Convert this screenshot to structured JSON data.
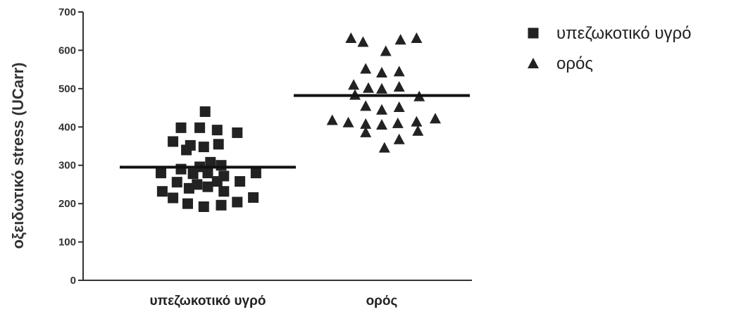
{
  "chart_data": {
    "type": "scatter",
    "title": "",
    "xlabel": "",
    "ylabel": "οξειδωτικό stress (UCarr)",
    "ylim": [
      0,
      700
    ],
    "yticks": [
      0,
      100,
      200,
      300,
      400,
      500,
      600,
      700
    ],
    "grid": false,
    "legend_position": "top-right",
    "categories": [
      "υπεζωκοτικό υγρό",
      "ορός"
    ],
    "series": [
      {
        "name": "υπεζωκοτικό υγρό",
        "marker": "square",
        "color": "#222222",
        "category": 0,
        "mean": 295,
        "points": [
          {
            "dx": -0.02,
            "y": 440
          },
          {
            "dx": -0.2,
            "y": 398
          },
          {
            "dx": -0.06,
            "y": 398
          },
          {
            "dx": 0.07,
            "y": 392
          },
          {
            "dx": 0.22,
            "y": 385
          },
          {
            "dx": -0.26,
            "y": 362
          },
          {
            "dx": -0.13,
            "y": 352
          },
          {
            "dx": -0.03,
            "y": 348
          },
          {
            "dx": 0.08,
            "y": 355
          },
          {
            "dx": -0.16,
            "y": 340
          },
          {
            "dx": 0.02,
            "y": 308
          },
          {
            "dx": -0.06,
            "y": 296
          },
          {
            "dx": 0.1,
            "y": 300
          },
          {
            "dx": -0.2,
            "y": 290
          },
          {
            "dx": -0.35,
            "y": 280
          },
          {
            "dx": -0.11,
            "y": 278
          },
          {
            "dx": 0.0,
            "y": 280
          },
          {
            "dx": 0.12,
            "y": 272
          },
          {
            "dx": 0.36,
            "y": 280
          },
          {
            "dx": -0.23,
            "y": 256
          },
          {
            "dx": -0.08,
            "y": 250
          },
          {
            "dx": 0.07,
            "y": 258
          },
          {
            "dx": 0.24,
            "y": 258
          },
          {
            "dx": -0.34,
            "y": 232
          },
          {
            "dx": -0.14,
            "y": 240
          },
          {
            "dx": 0.0,
            "y": 244
          },
          {
            "dx": 0.12,
            "y": 232
          },
          {
            "dx": -0.26,
            "y": 215
          },
          {
            "dx": 0.34,
            "y": 216
          },
          {
            "dx": -0.15,
            "y": 200
          },
          {
            "dx": -0.03,
            "y": 192
          },
          {
            "dx": 0.1,
            "y": 196
          },
          {
            "dx": 0.22,
            "y": 204
          }
        ]
      },
      {
        "name": "ορός",
        "marker": "triangle",
        "color": "#222222",
        "category": 1,
        "mean": 482,
        "points": [
          {
            "dx": -0.23,
            "y": 632
          },
          {
            "dx": -0.14,
            "y": 622
          },
          {
            "dx": 0.03,
            "y": 598
          },
          {
            "dx": 0.14,
            "y": 628
          },
          {
            "dx": 0.26,
            "y": 632
          },
          {
            "dx": -0.12,
            "y": 552
          },
          {
            "dx": 0.0,
            "y": 542
          },
          {
            "dx": 0.13,
            "y": 545
          },
          {
            "dx": -0.21,
            "y": 510
          },
          {
            "dx": -0.1,
            "y": 502
          },
          {
            "dx": 0.0,
            "y": 500
          },
          {
            "dx": 0.13,
            "y": 505
          },
          {
            "dx": -0.2,
            "y": 484
          },
          {
            "dx": 0.28,
            "y": 480
          },
          {
            "dx": -0.12,
            "y": 455
          },
          {
            "dx": 0.0,
            "y": 445
          },
          {
            "dx": 0.13,
            "y": 452
          },
          {
            "dx": -0.37,
            "y": 418
          },
          {
            "dx": -0.25,
            "y": 412
          },
          {
            "dx": -0.12,
            "y": 408
          },
          {
            "dx": 0.0,
            "y": 406
          },
          {
            "dx": 0.12,
            "y": 410
          },
          {
            "dx": 0.26,
            "y": 414
          },
          {
            "dx": 0.4,
            "y": 422
          },
          {
            "dx": -0.12,
            "y": 386
          },
          {
            "dx": 0.27,
            "y": 390
          },
          {
            "dx": 0.13,
            "y": 368
          },
          {
            "dx": 0.02,
            "y": 346
          }
        ]
      }
    ]
  }
}
